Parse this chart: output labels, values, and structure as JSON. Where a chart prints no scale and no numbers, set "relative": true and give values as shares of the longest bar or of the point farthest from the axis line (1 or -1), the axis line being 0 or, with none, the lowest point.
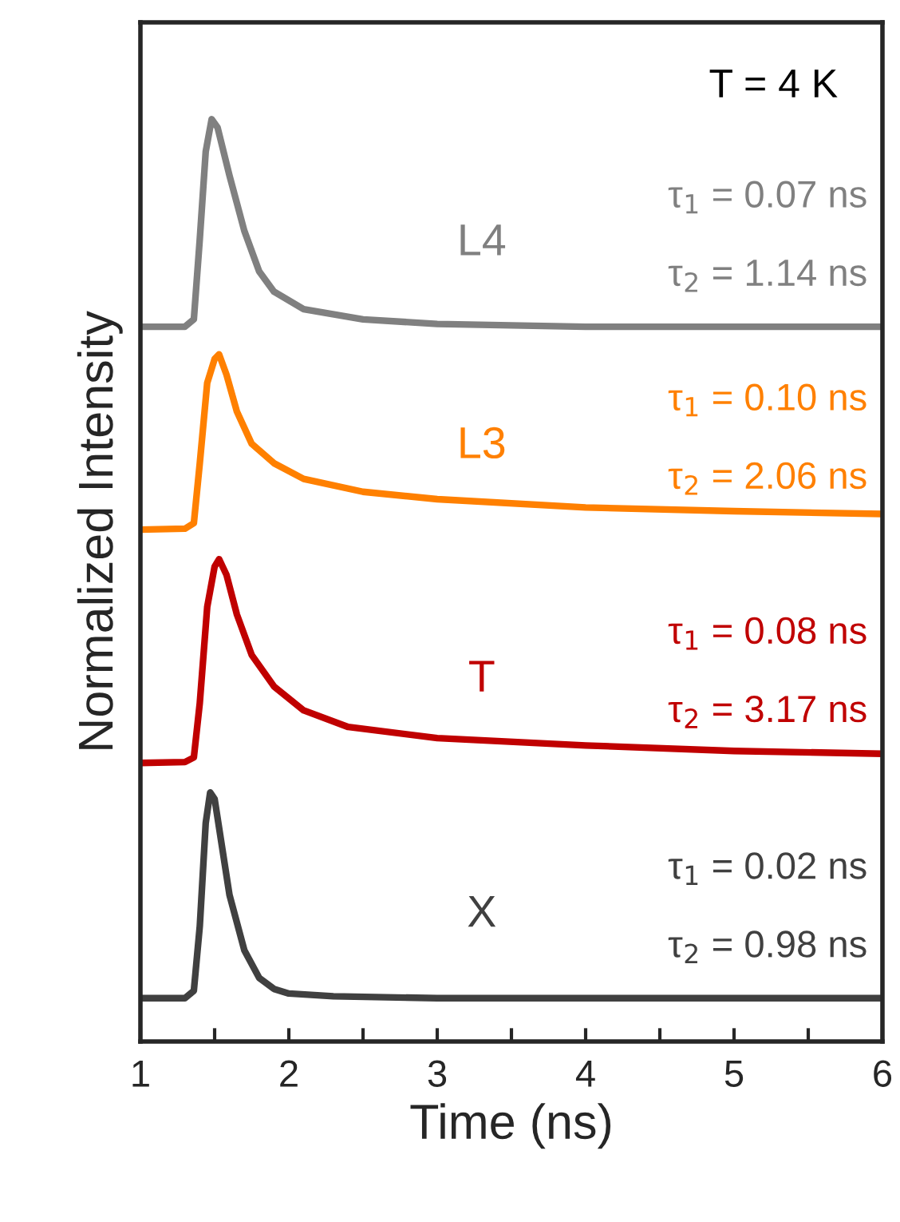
{
  "chart_data": {
    "type": "line",
    "relative": true,
    "xlabel": "Time (ns)",
    "ylabel": "Normalized Intensity",
    "xlim": [
      1,
      6
    ],
    "xticks": [
      1,
      {
        "value": 1.5,
        "label": null
      },
      2,
      {
        "value": 2.5,
        "label": null
      },
      3,
      {
        "value": 3.5,
        "label": null
      },
      4,
      {
        "value": 4.5,
        "label": null
      },
      5,
      {
        "value": 5.5,
        "label": null
      },
      6
    ],
    "tick_labels": "x",
    "grid": false,
    "legend": false,
    "marker": "none",
    "line_style": "solid",
    "annotations": [
      "T = 4 K",
      "τ$_{1}$ = 0.07 ns",
      "τ$_{2}$ = 1.14 ns",
      "τ$_{1}$ = 0.10 ns",
      "τ$_{2}$ = 2.06 ns",
      "τ$_{1}$ = 0.08 ns",
      "τ$_{2}$ = 3.17 ns",
      "τ$_{1}$ = 0.02 ns",
      "τ$_{2}$ = 0.98 ns"
    ],
    "series": [
      {
        "name": "L4",
        "color": "#808080",
        "x": [
          1.0,
          1.3,
          1.36,
          1.4,
          1.44,
          1.48,
          1.52,
          1.6,
          1.7,
          1.8,
          1.9,
          2.1,
          2.5,
          3,
          4,
          6
        ],
        "values": [
          0.775,
          0.775,
          0.783,
          0.87,
          0.965,
          1.0,
          0.991,
          0.939,
          0.879,
          0.835,
          0.813,
          0.794,
          0.783,
          0.778,
          0.775,
          0.775
        ]
      },
      {
        "name": "L3",
        "color": "#ff8000",
        "x": [
          1.0,
          1.3,
          1.36,
          1.4,
          1.45,
          1.5,
          1.53,
          1.58,
          1.65,
          1.75,
          1.9,
          2.1,
          2.5,
          3,
          4,
          5,
          6
        ],
        "values": [
          0.555,
          0.556,
          0.562,
          0.627,
          0.714,
          0.74,
          0.745,
          0.723,
          0.683,
          0.648,
          0.627,
          0.61,
          0.596,
          0.588,
          0.579,
          0.575,
          0.572
        ]
      },
      {
        "name": "T",
        "color": "#c00000",
        "x": [
          1.0,
          1.3,
          1.36,
          1.4,
          1.45,
          1.5,
          1.53,
          1.58,
          1.65,
          1.75,
          1.9,
          2.1,
          2.4,
          3,
          4,
          5,
          6
        ],
        "values": [
          0.302,
          0.303,
          0.308,
          0.367,
          0.471,
          0.515,
          0.523,
          0.506,
          0.463,
          0.419,
          0.385,
          0.359,
          0.341,
          0.329,
          0.321,
          0.315,
          0.312
        ]
      },
      {
        "name": "X",
        "color": "#404040",
        "x": [
          1.0,
          1.3,
          1.36,
          1.4,
          1.44,
          1.47,
          1.5,
          1.55,
          1.6,
          1.7,
          1.8,
          1.9,
          2.0,
          2.3,
          3,
          6
        ],
        "values": [
          0.047,
          0.047,
          0.055,
          0.125,
          0.237,
          0.27,
          0.263,
          0.211,
          0.159,
          0.099,
          0.069,
          0.057,
          0.052,
          0.049,
          0.047,
          0.047
        ]
      }
    ]
  }
}
